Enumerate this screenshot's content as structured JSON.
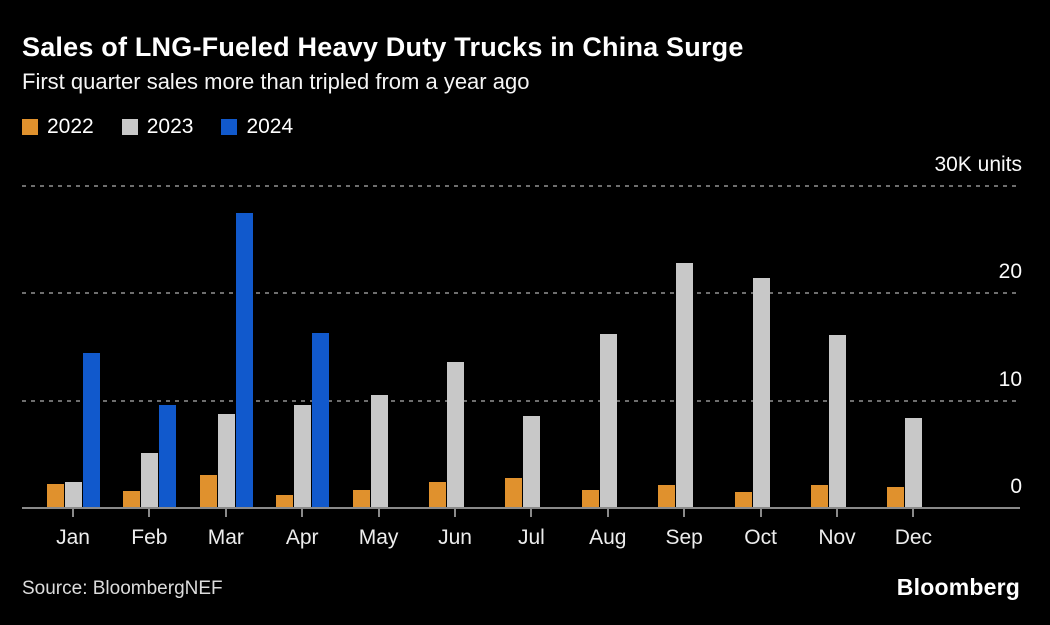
{
  "header": {
    "title": "Sales of LNG-Fueled Heavy Duty Trucks in China Surge",
    "subtitle": "First quarter sales more than tripled from a year ago"
  },
  "footer": {
    "source": "Source: BloombergNEF",
    "brand": "Bloomberg"
  },
  "colors": {
    "background": "#000000",
    "series_2022": "#e0912d",
    "series_2023": "#c8c8c8",
    "series_2024": "#1159cc",
    "gridline": "#6e6e6e",
    "baseline": "#8a8a8a"
  },
  "chart_data": {
    "type": "bar",
    "title": "Sales of LNG-Fueled Heavy Duty Trucks in China Surge",
    "subtitle": "First quarter sales more than tripled from a year ago",
    "unit_note": "values in thousands of units (K units)",
    "categories": [
      "Jan",
      "Feb",
      "Mar",
      "Apr",
      "May",
      "Jun",
      "Jul",
      "Aug",
      "Sep",
      "Oct",
      "Nov",
      "Dec"
    ],
    "series": [
      {
        "name": "2022",
        "color": "#e0912d",
        "values": [
          2.2,
          1.6,
          3.1,
          1.2,
          1.7,
          2.4,
          2.8,
          1.7,
          2.1,
          1.5,
          2.1,
          2.0
        ]
      },
      {
        "name": "2023",
        "color": "#c8c8c8",
        "values": [
          2.4,
          5.1,
          8.8,
          9.6,
          10.5,
          13.6,
          8.6,
          16.2,
          22.8,
          21.4,
          16.1,
          8.4
        ]
      },
      {
        "name": "2024",
        "color": "#1159cc",
        "values": [
          14.4,
          9.6,
          27.5,
          16.3,
          null,
          null,
          null,
          null,
          null,
          null,
          null,
          null
        ]
      }
    ],
    "ylim": [
      0,
      30
    ],
    "y_gridlines": [
      30,
      20,
      10
    ],
    "y_axis_labels": [
      {
        "value": 30,
        "text": "30K units"
      },
      {
        "value": 20,
        "text": "20"
      },
      {
        "value": 10,
        "text": "10"
      },
      {
        "value": 0,
        "text": "0"
      }
    ],
    "grid": "dotted horizontal",
    "legend_position": "top-left"
  }
}
